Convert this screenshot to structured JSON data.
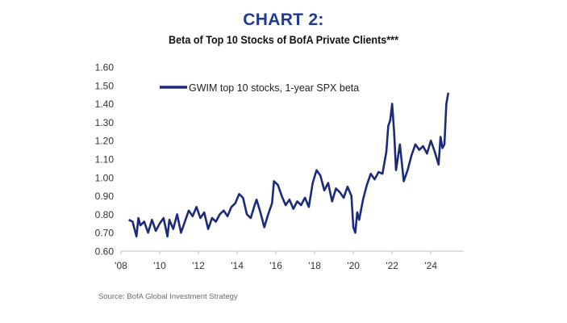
{
  "heading": "CHART 2:",
  "subtitle": "Beta of Top 10 Stocks of BofA Private Clients***",
  "source": "Source: BofA Global Investment Strategy",
  "colors": {
    "heading": "#1f3a93",
    "series": "#1b2a7a",
    "axis": "#bfbfbf"
  },
  "chart_data": {
    "type": "line",
    "title": "",
    "xlabel": "",
    "ylabel": "",
    "xlim": [
      2008,
      2025.7
    ],
    "ylim": [
      0.6,
      1.6
    ],
    "grid": false,
    "legend": "top-left-inside",
    "y_ticks": [
      0.6,
      0.7,
      0.8,
      0.9,
      1.0,
      1.1,
      1.2,
      1.3,
      1.4,
      1.5,
      1.6
    ],
    "y_tick_labels": [
      "0.60",
      "0.70",
      "0.80",
      "0.90",
      "1.00",
      "1.10",
      "1.20",
      "1.30",
      "1.40",
      "1.50",
      "1.60"
    ],
    "x_ticks": [
      2008,
      2010,
      2012,
      2014,
      2016,
      2018,
      2020,
      2022,
      2024
    ],
    "x_tick_labels": [
      "'08",
      "'10",
      "'12",
      "'14",
      "'16",
      "'18",
      "'20",
      "'22",
      "'24"
    ],
    "series": [
      {
        "name": "GWIM top 10 stocks, 1-year SPX beta",
        "x": [
          2008.4,
          2008.6,
          2008.8,
          2008.9,
          2009.0,
          2009.2,
          2009.4,
          2009.6,
          2009.8,
          2010.0,
          2010.2,
          2010.4,
          2010.5,
          2010.7,
          2010.9,
          2011.1,
          2011.3,
          2011.5,
          2011.7,
          2011.9,
          2012.1,
          2012.3,
          2012.5,
          2012.7,
          2012.9,
          2013.1,
          2013.3,
          2013.5,
          2013.7,
          2013.9,
          2014.1,
          2014.3,
          2014.5,
          2014.7,
          2014.9,
          2015.0,
          2015.2,
          2015.4,
          2015.6,
          2015.8,
          2015.9,
          2016.1,
          2016.3,
          2016.5,
          2016.7,
          2016.9,
          2017.1,
          2017.3,
          2017.5,
          2017.7,
          2017.9,
          2018.1,
          2018.3,
          2018.5,
          2018.7,
          2018.9,
          2019.1,
          2019.3,
          2019.5,
          2019.7,
          2019.9,
          2020.0,
          2020.1,
          2020.2,
          2020.3,
          2020.5,
          2020.7,
          2020.9,
          2021.1,
          2021.3,
          2021.5,
          2021.7,
          2021.8,
          2021.9,
          2022.0,
          2022.1,
          2022.2,
          2022.4,
          2022.6,
          2022.8,
          2023.0,
          2023.2,
          2023.4,
          2023.6,
          2023.8,
          2024.0,
          2024.2,
          2024.4,
          2024.5,
          2024.6,
          2024.7,
          2024.8,
          2024.9
        ],
        "values": [
          0.77,
          0.76,
          0.68,
          0.78,
          0.74,
          0.76,
          0.7,
          0.77,
          0.71,
          0.75,
          0.78,
          0.68,
          0.77,
          0.72,
          0.8,
          0.7,
          0.76,
          0.82,
          0.79,
          0.84,
          0.78,
          0.81,
          0.72,
          0.78,
          0.76,
          0.8,
          0.82,
          0.79,
          0.84,
          0.86,
          0.91,
          0.89,
          0.8,
          0.78,
          0.85,
          0.88,
          0.81,
          0.73,
          0.8,
          0.86,
          0.98,
          0.96,
          0.9,
          0.85,
          0.88,
          0.83,
          0.87,
          0.85,
          0.89,
          0.84,
          0.97,
          1.04,
          1.01,
          0.93,
          0.97,
          0.87,
          0.94,
          0.92,
          0.89,
          0.95,
          0.9,
          0.73,
          0.7,
          0.81,
          0.77,
          0.88,
          0.96,
          1.02,
          0.99,
          1.03,
          1.02,
          1.14,
          1.28,
          1.31,
          1.4,
          1.25,
          1.04,
          1.18,
          0.98,
          1.04,
          1.12,
          1.18,
          1.15,
          1.17,
          1.13,
          1.2,
          1.14,
          1.07,
          1.22,
          1.16,
          1.18,
          1.4,
          1.46
        ]
      }
    ]
  }
}
